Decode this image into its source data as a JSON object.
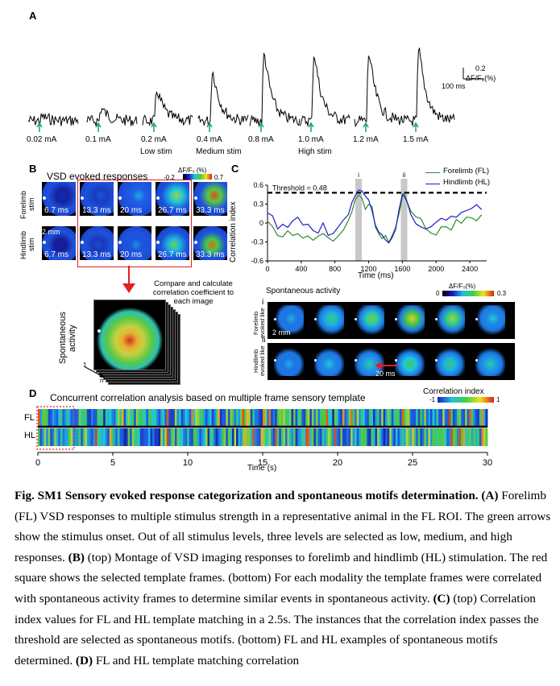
{
  "panel_a": {
    "letter": "A",
    "scale_value": "0.2",
    "scale_unit": "ΔF/F₀(%)",
    "scale_time": "100 ms",
    "stimuli": [
      "0.02 mA",
      "0.1 mA",
      "0.2 mA",
      "0.4 mA",
      "0.8 mA",
      "1.0 mA",
      "1.2 mA",
      "1.5 mA"
    ],
    "peaks": [
      0.06,
      0.18,
      0.45,
      0.74,
      1.0,
      1.0,
      1.0,
      1.05
    ],
    "level_labels": {
      "low": "Low stim",
      "medium": "Medium stim",
      "high": "High stim"
    },
    "arrow_color": "#1a9a8a"
  },
  "panel_b": {
    "letter": "B",
    "title": "VSD evoked responses",
    "colorbar_label": "ΔF/F₀ (%)",
    "colorbar_min": "-0.2",
    "colorbar_max": "0.7",
    "row_labels": [
      "Forelimb stim",
      "Hindlimb stim"
    ],
    "scalebar": "2 mm",
    "times": [
      "6.7 ms",
      "13.3 ms",
      "20 ms",
      "26.7 ms",
      "33.3 ms"
    ],
    "arrow_text": "Compare and calculate correlation coefficient to each image",
    "stack_label": "Spontaneous activity",
    "stack_index_1": "1",
    "stack_index_n": "n",
    "template_box_color": "#e02020"
  },
  "panel_c": {
    "letter": "C",
    "legend": [
      "Forelimb (FL)",
      "Hindlimb (HL)"
    ],
    "threshold_label": "Threshold = 0.48",
    "ylabel": "Correlation index",
    "xlabel": "Time (ms)",
    "marker_i": "i",
    "marker_ii": "ii",
    "spont_title": "Spontaneous activity",
    "spont_cb_label": "ΔF/F₀(%)",
    "spont_cb_min": "0",
    "spont_cb_max": "0.3",
    "row_i": "i",
    "row_ii": "ii",
    "row_i_label": "Forelimb evoked like",
    "row_ii_label": "Hindlimb evoked like",
    "scalebar": "2 mm",
    "interval": "20 ms",
    "colors": {
      "fl": "#2e8b2e",
      "hl": "#1c1ccc"
    }
  },
  "chart_data": {
    "type": "line",
    "xlabel": "Time (ms)",
    "ylabel": "Correlation index",
    "xlim": [
      0,
      2600
    ],
    "ylim": [
      -0.6,
      0.6
    ],
    "xticks": [
      "0",
      "400",
      "800",
      "1200",
      "1600",
      "2000",
      "2400"
    ],
    "yticks": [
      "0.6",
      "0.3",
      "0",
      "-0.3",
      "-0.6"
    ],
    "threshold": 0.48,
    "highlight_x": [
      1080,
      1620
    ],
    "x": [
      0,
      60,
      120,
      180,
      240,
      300,
      360,
      420,
      480,
      540,
      600,
      660,
      720,
      780,
      840,
      900,
      960,
      1000,
      1040,
      1080,
      1120,
      1160,
      1200,
      1240,
      1280,
      1320,
      1360,
      1400,
      1440,
      1480,
      1520,
      1560,
      1600,
      1620,
      1660,
      1700,
      1760,
      1820,
      1880,
      1940,
      2000,
      2060,
      2120,
      2180,
      2240,
      2300,
      2360,
      2420,
      2480,
      2540
    ],
    "series": [
      {
        "name": "Forelimb (FL)",
        "values": [
          0.02,
          -0.05,
          -0.18,
          -0.22,
          -0.12,
          -0.2,
          -0.15,
          -0.25,
          -0.2,
          -0.28,
          -0.22,
          -0.15,
          -0.25,
          -0.3,
          -0.22,
          -0.1,
          0.05,
          0.18,
          0.35,
          0.44,
          0.38,
          0.22,
          0.3,
          0.25,
          -0.05,
          -0.18,
          -0.25,
          -0.2,
          -0.3,
          -0.2,
          -0.05,
          0.15,
          0.42,
          0.5,
          0.32,
          0.2,
          0.12,
          0.05,
          -0.1,
          -0.15,
          -0.18,
          -0.08,
          -0.05,
          -0.12,
          0.05,
          0.0,
          0.08,
          0.1,
          0.05,
          0.15
        ]
      },
      {
        "name": "Hindlimb (HL)",
        "values": [
          0.15,
          0.1,
          -0.1,
          0.0,
          -0.05,
          0.05,
          0.1,
          -0.05,
          0.0,
          -0.1,
          -0.15,
          0.0,
          -0.2,
          -0.15,
          -0.05,
          0.05,
          0.15,
          0.32,
          0.45,
          0.52,
          0.5,
          0.42,
          0.35,
          0.2,
          -0.05,
          -0.15,
          -0.2,
          -0.25,
          -0.3,
          -0.22,
          -0.1,
          0.2,
          0.45,
          0.42,
          0.3,
          0.12,
          0.0,
          -0.05,
          -0.1,
          -0.05,
          0.0,
          0.08,
          0.05,
          0.12,
          0.1,
          0.15,
          0.18,
          0.25,
          0.3,
          0.22
        ]
      }
    ]
  },
  "panel_d": {
    "letter": "D",
    "title": "Concurrent correlation analysis based on multiple frame sensory template",
    "cb_label": "Correlation index",
    "cb_min": "-1",
    "cb_max": "1",
    "rows": [
      "FL",
      "HL"
    ],
    "xlabel": "Time (s)",
    "xticks": [
      "0",
      "5",
      "10",
      "15",
      "20",
      "25",
      "30"
    ]
  },
  "caption": {
    "fig_title": "Fig. SM1 Sensory evoked response categorization and spontaneous motifs determination. (A)",
    "part_a": "Forelimb (FL) VSD responses to multiple stimulus strength in a representative animal in the FL ROI. The green arrows show the stimulus onset. Out of all stimulus levels, three levels are selected as low, medium, and high responses.",
    "b_tag": "(B)",
    "part_b": "(top) Montage of VSD imaging responses to forelimb and hindlimb (HL) stimulation. The red square shows the selected template frames. (bottom) For each modality the template frames were correlated with spontaneous activity frames to determine similar events in spontaneous activity.",
    "c_tag": "(C)",
    "part_c": "(top) Correlation index values for FL and HL template matching in a 2.5s. The instances that the correlation index passes the threshold are selected as spontaneous motifs. (bottom) FL and HL examples of spontaneous motifs determined.",
    "d_tag": "(D)",
    "part_d": "FL and HL template matching correlation"
  }
}
